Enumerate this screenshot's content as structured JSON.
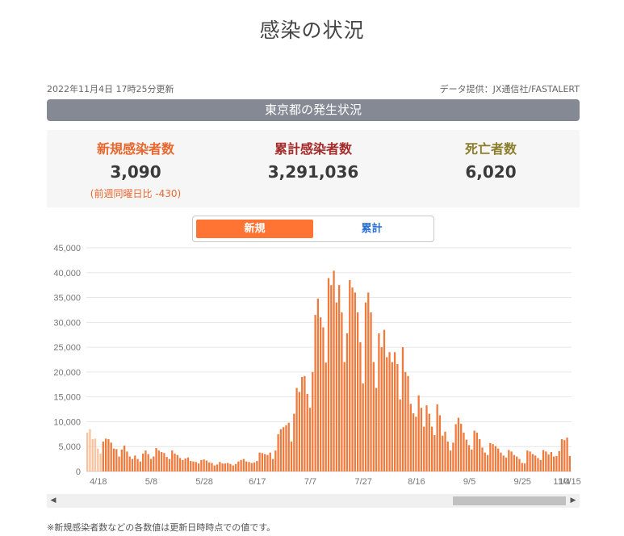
{
  "page": {
    "title": "感染の状況"
  },
  "meta": {
    "updated": "2022年11月4日 17時25分更新",
    "provider": "データ提供：JX通信社/FASTALERT"
  },
  "region": {
    "title": "東京都の発生状況"
  },
  "stats": {
    "new_cases": {
      "label": "新規感染者数",
      "value": "3,090",
      "sub": "(前週同曜日比 -430)",
      "color": "#e8672d"
    },
    "total_cases": {
      "label": "累計感染者数",
      "value": "3,291,036",
      "color": "#a52a2a"
    },
    "deaths": {
      "label": "死亡者数",
      "value": "6,020",
      "color": "#8b7d2a"
    }
  },
  "tabs": {
    "active": "新規",
    "inactive": "累計",
    "active_color": "#ff7433",
    "inactive_color": "#2a6fd6"
  },
  "chart_data": {
    "type": "bar",
    "x_tick_labels": [
      "4/18",
      "5/8",
      "5/28",
      "6/17",
      "7/7",
      "7/27",
      "8/16",
      "9/5",
      "9/25",
      "10/15",
      "11/4"
    ],
    "y_tick_labels": [
      "0",
      "5,000",
      "10,000",
      "15,000",
      "20,000",
      "25,000",
      "30,000",
      "35,000",
      "40,000",
      "45,000"
    ],
    "ylim": [
      0,
      45000
    ],
    "grid": true,
    "bar_color": "#f07a3c",
    "faded_bar_color": "#f8c29e",
    "values": [
      7800,
      8500,
      6500,
      6600,
      4600,
      3600,
      6000,
      6600,
      6500,
      5800,
      4600,
      4500,
      3000,
      4400,
      5200,
      4000,
      3000,
      2500,
      3200,
      2500,
      2000,
      3600,
      4200,
      3500,
      2500,
      3000,
      4700,
      4200,
      3900,
      3700,
      2900,
      2500,
      4200,
      3600,
      3300,
      2700,
      2300,
      2600,
      2800,
      2100,
      2000,
      1900,
      1600,
      2300,
      2400,
      2200,
      1800,
      1700,
      1200,
      1400,
      1900,
      1600,
      1600,
      1700,
      1500,
      1200,
      1500,
      2000,
      2300,
      2500,
      2000,
      1900,
      1700,
      1800,
      2100,
      3800,
      3700,
      3500,
      3300,
      3800,
      2500,
      4200,
      7500,
      8500,
      8900,
      9300,
      9800,
      6000,
      11600,
      16800,
      16000,
      19000,
      19200,
      15600,
      12800,
      20000,
      31500,
      34800,
      31000,
      29000,
      21900,
      38900,
      37500,
      40400,
      34000,
      37500,
      32000,
      22000,
      27800,
      38500,
      37000,
      36000,
      32000,
      26000,
      17700,
      34000,
      36000,
      32000,
      22000,
      16800,
      27800,
      25000,
      28500,
      23000,
      24000,
      22000,
      24000,
      21600,
      14500,
      25000,
      20000,
      19200,
      13600,
      11700,
      11000,
      15300,
      12800,
      9000,
      13300,
      11600,
      9000,
      7300,
      13500,
      11300,
      7200,
      8000,
      6000,
      4200,
      5800,
      9500,
      10800,
      9600,
      7800,
      6400,
      5300,
      4400,
      8200,
      7800,
      6500,
      4800,
      3800,
      3300,
      5700,
      5500,
      5100,
      4600,
      3800,
      3200,
      2800,
      4300,
      4000,
      3300,
      3000,
      2500,
      1700,
      1600,
      4200,
      4000,
      3500,
      3200,
      2700,
      2300,
      4300,
      4000,
      3400,
      3900,
      3000,
      3100,
      4100,
      6500,
      6300,
      6800,
      3100
    ]
  },
  "scrollbar": {
    "left_arrow": "◀",
    "right_arrow": "▶"
  },
  "footnote": "※新規感染者数などの各数値は更新日時時点での値です。"
}
